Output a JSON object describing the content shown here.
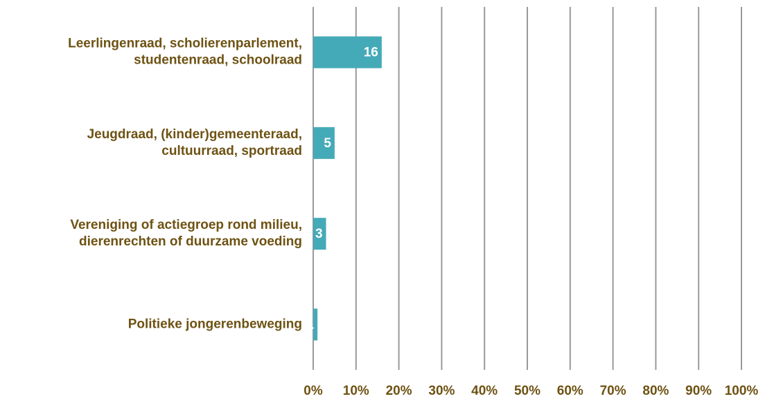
{
  "chart_data": {
    "type": "hbar",
    "categories": [
      "Leerlingenraad, scholierenparlement,\nstudentenraad, schoolraad",
      "Jeugdraad, (kinder)gemeenteraad,\ncultuurraad, sportraad",
      "Vereniging of actiegroep rond milieu,\ndierenrechten of duurzame voeding",
      "Politieke jongerenbeweging"
    ],
    "values": [
      16,
      5,
      3,
      1
    ],
    "color": "#45aab8",
    "xlim": [
      0,
      100
    ],
    "xticks": [
      {
        "value": 0,
        "label": "0%"
      },
      {
        "value": 10,
        "label": "10%"
      },
      {
        "value": 20,
        "label": "20%"
      },
      {
        "value": 30,
        "label": "30%"
      },
      {
        "value": 40,
        "label": "40%"
      },
      {
        "value": 50,
        "label": "50%"
      },
      {
        "value": 60,
        "label": "60%"
      },
      {
        "value": 70,
        "label": "70%"
      },
      {
        "value": 80,
        "label": "80%"
      },
      {
        "value": 90,
        "label": "90%"
      },
      {
        "value": 100,
        "label": "100%"
      }
    ],
    "grid": true
  }
}
